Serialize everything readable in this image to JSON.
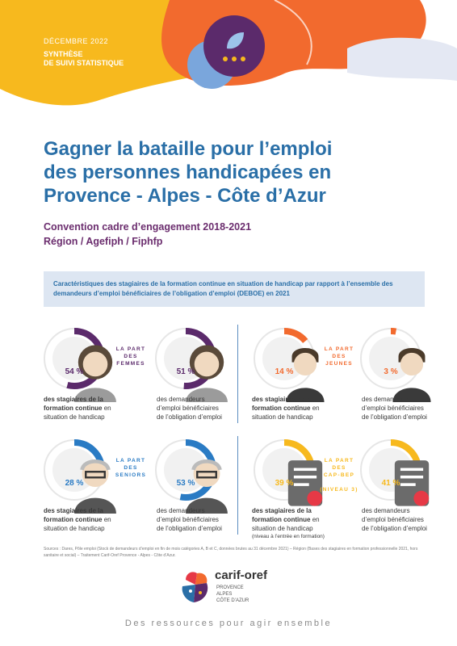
{
  "header": {
    "date": "DÉCEMBRE 2022",
    "title_lines": [
      "SYNTHÈSE",
      "DE SUIVI STATISTIQUE"
    ]
  },
  "main_title_lines": [
    "Gagner la bataille pour l’emploi",
    "des personnes handicapées en",
    "Provence - Alpes - Côte d’Azur"
  ],
  "subtitle_lines": [
    "Convention cadre d’engagement 2018-2021",
    "Région / Agefiph / Fiphfp"
  ],
  "intro": "Caractéristiques des stagiaires de la formation continue en situation de handicap par rapport à l’ensemble des demandeurs d’emploi bénéficiaires de l’obligation d’emploi (DEBOE) en 2021",
  "colors": {
    "purple": "#5b2a6b",
    "orange": "#f26a2e",
    "blue": "#2a7bc4",
    "yellow": "#f7b91e",
    "track": "#e6e6e6",
    "title_blue": "#2a6fa7"
  },
  "stats": [
    {
      "id": "femmes",
      "tag_lines": [
        "LA PART",
        "DES",
        "FEMMES"
      ],
      "color": "purple",
      "icon": "woman-icon",
      "left": {
        "value": 54,
        "label": "54 %",
        "caption_bold_lines": [
          "des stagiaires de la",
          "formation continue"
        ],
        "caption_rest": "situation de handicap",
        "caption_en": "en"
      },
      "right": {
        "value": 51,
        "label": "51 %",
        "caption_lines": [
          "des demandeurs",
          "d’emploi bénéficiaires",
          "de l’obligation d’emploi"
        ]
      }
    },
    {
      "id": "jeunes",
      "tag_lines": [
        "LA PART",
        "DES",
        "JEUNES"
      ],
      "color": "orange",
      "icon": "young-person-icon",
      "left": {
        "value": 14,
        "label": "14 %",
        "caption_bold_lines": [
          "des stagiaires de la",
          "formation continue"
        ],
        "caption_rest": "situation de handicap",
        "caption_en": "en"
      },
      "right": {
        "value": 3,
        "label": "3 %",
        "caption_lines": [
          "des demandeurs",
          "d’emploi bénéficiaires",
          "de l’obligation d’emploi"
        ]
      }
    },
    {
      "id": "seniors",
      "tag_lines": [
        "LA PART",
        "DES",
        "SENIORS"
      ],
      "color": "blue",
      "icon": "senior-icon",
      "left": {
        "value": 28,
        "label": "28 %",
        "caption_bold_lines": [
          "des stagiaires de la",
          "formation continue"
        ],
        "caption_rest": "situation de handicap",
        "caption_en": "en"
      },
      "right": {
        "value": 53,
        "label": "53 %",
        "caption_lines": [
          "des demandeurs",
          "d’emploi bénéficiaires",
          "de l’obligation d’emploi"
        ]
      }
    },
    {
      "id": "cap-bep",
      "tag_lines": [
        "LA PART",
        "DES",
        "CAP-BEP",
        "",
        "(NIVEAU 3)"
      ],
      "color": "yellow",
      "icon": "diploma-icon",
      "left": {
        "value": 39,
        "label": "39 %",
        "caption_bold_lines": [
          "des stagiaires de la",
          "formation continue"
        ],
        "caption_rest": "situation de handicap",
        "caption_en": "en",
        "caption_note": "(niveau à l’entrée en formation)"
      },
      "right": {
        "value": 41,
        "label": "41 %",
        "caption_lines": [
          "des demandeurs",
          "d’emploi bénéficiaires",
          "de l’obligation d’emploi"
        ]
      }
    }
  ],
  "sources": "Sources : Dares, Pôle emploi (Stock de demandeurs d’emploi en fin de mois catégories A, B et C, données brutes au 31 décembre 2021) – Région (Bases des stagiaires en formation professionnelle 2021, hors sanitaire et social) – Traitement Carif-Oref Provence - Alpes - Côte d’Azur.",
  "logo": {
    "wordmark": "carif-oref",
    "sub_lines": [
      "PROVENCE",
      "ALPES",
      "CÔTE D’AZUR"
    ]
  },
  "footer_tagline": "Des ressources pour agir ensemble"
}
